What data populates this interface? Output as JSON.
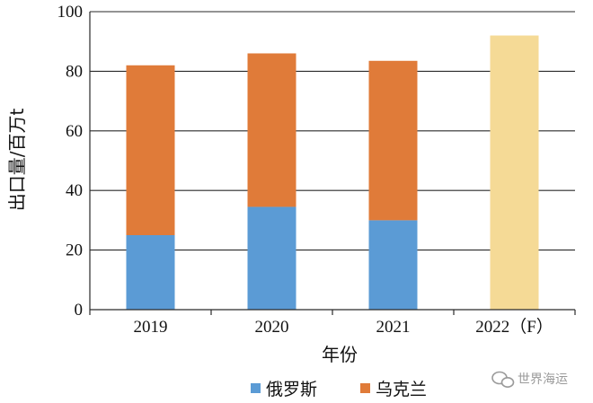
{
  "chart_data": {
    "type": "bar",
    "stacked": true,
    "xlabel": "年份",
    "ylabel": "出口量/百万t",
    "ylim": [
      0,
      100
    ],
    "yticks": [
      0,
      20,
      40,
      60,
      80,
      100
    ],
    "grid": true,
    "legend_position": "bottom",
    "categories": [
      "2019",
      "2020",
      "2021",
      "2022（F）"
    ],
    "series": [
      {
        "name": "俄罗斯",
        "color": "#5b9bd5",
        "values": [
          25,
          34.5,
          30,
          null
        ]
      },
      {
        "name": "乌克兰",
        "color": "#e07b39",
        "values": [
          57,
          51.5,
          53.5,
          null
        ]
      }
    ],
    "forecast": {
      "category": "2022（F）",
      "value": 92,
      "color": "#f5da96"
    }
  },
  "watermark": {
    "text": "世界海运",
    "icon": "wechat-icon"
  }
}
